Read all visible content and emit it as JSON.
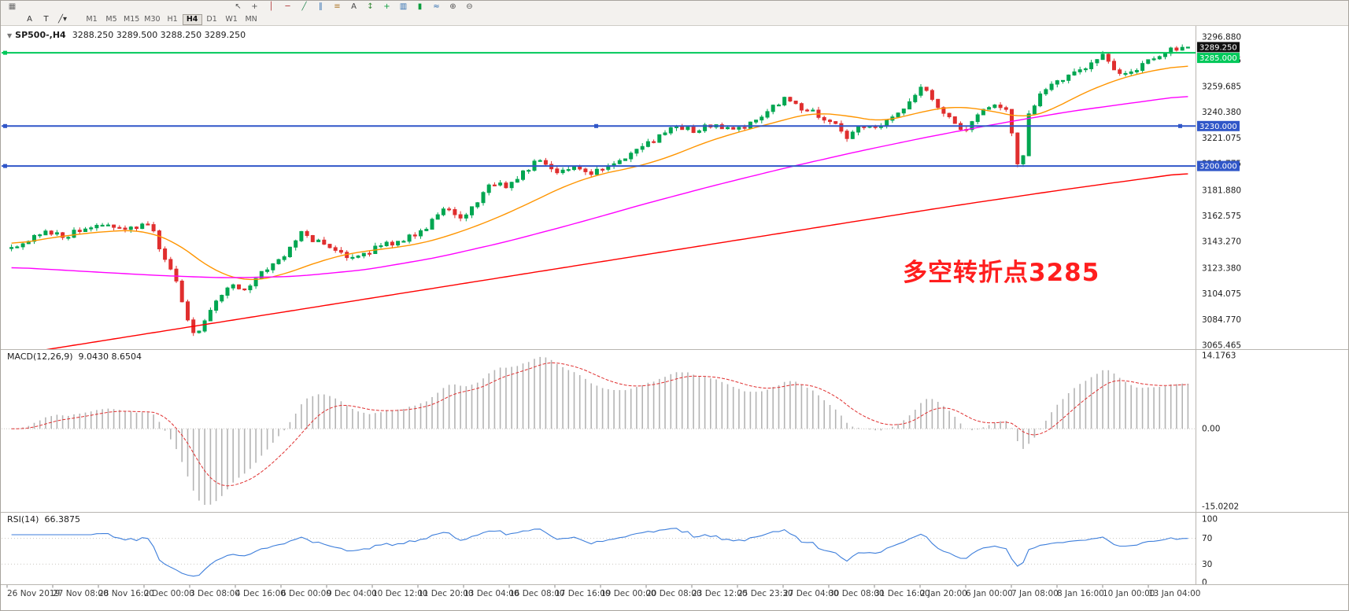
{
  "toolbar": {
    "row1_left_icons": [
      {
        "name": "menu-grid",
        "glyph": "▦",
        "color": "#6b6b6b"
      }
    ],
    "row1_right_icons": [
      {
        "name": "cursor",
        "glyph": "↖",
        "color": "#555555"
      },
      {
        "name": "crosshair",
        "glyph": "+",
        "color": "#555555"
      },
      {
        "name": "vertical-line",
        "glyph": "│",
        "color": "#b03030"
      },
      {
        "name": "horizontal-line",
        "glyph": "─",
        "color": "#b03030"
      },
      {
        "name": "trendline",
        "glyph": "╱",
        "color": "#2e8b57"
      },
      {
        "name": "equidistant-channel",
        "glyph": "∥",
        "color": "#2f6db0"
      },
      {
        "name": "fibonacci",
        "glyph": "≡",
        "color": "#b07a2e"
      },
      {
        "name": "text-label",
        "glyph": "A",
        "color": "#444444"
      },
      {
        "name": "arrow-marker",
        "glyph": "↕",
        "color": "#3a8a3a"
      },
      {
        "name": "new-order",
        "glyph": "+",
        "color": "#0b9e3e"
      },
      {
        "name": "bar-chart-mode",
        "glyph": "▥",
        "color": "#2f6db0"
      },
      {
        "name": "candlestick-mode",
        "glyph": "▮",
        "color": "#0b9e3e"
      },
      {
        "name": "line-chart-mode",
        "glyph": "≈",
        "color": "#2f6db0"
      },
      {
        "name": "zoom-in",
        "glyph": "⊕",
        "color": "#555555"
      },
      {
        "name": "zoom-out",
        "glyph": "⊖",
        "color": "#555555"
      }
    ],
    "row2_tools": [
      {
        "name": "cursor-mode",
        "glyph": "A"
      },
      {
        "name": "text-mode",
        "glyph": "T"
      },
      {
        "name": "draw-menu",
        "glyph": "╱▾"
      }
    ],
    "timeframes": [
      {
        "label": "M1",
        "active": false
      },
      {
        "label": "M5",
        "active": false
      },
      {
        "label": "M15",
        "active": false
      },
      {
        "label": "M30",
        "active": false
      },
      {
        "label": "H1",
        "active": false
      },
      {
        "label": "H4",
        "active": true
      },
      {
        "label": "D1",
        "active": false
      },
      {
        "label": "W1",
        "active": false
      },
      {
        "label": "MN",
        "active": false
      }
    ]
  },
  "chart": {
    "dropdown_glyph": "▼",
    "symbol_header": "SP500-,H4",
    "ohlc": "3288.250 3289.500 3288.250 3289.250"
  },
  "macd_panel": {
    "label": "MACD(12,26,9)",
    "values": "9.0430 8.6504"
  },
  "rsi_panel": {
    "label": "RSI(14)",
    "values": "66.3875"
  },
  "chart_data": {
    "type": "candlestick",
    "symbol": "SP500-",
    "timeframe": "H4",
    "ohlc_display": {
      "open": 3288.25,
      "high": 3289.5,
      "low": 3288.25,
      "close": 3289.25
    },
    "current_price": 3289.25,
    "current_price_badge": {
      "text": "3289.250",
      "bg": "#111111",
      "fg": "#ffffff"
    },
    "price_axis_range": [
      3065.465,
      3296.88
    ],
    "price_axis_ticks": [
      "3296.880",
      "3279.575",
      "3259.685",
      "3240.380",
      "3221.075",
      "3201.775",
      "3181.880",
      "3162.575",
      "3143.270",
      "3123.380",
      "3104.075",
      "3084.770",
      "3065.465"
    ],
    "hlines": [
      {
        "price": 3285.0,
        "label": "3285.000",
        "color": "#00c85a",
        "width": 2
      },
      {
        "price": 3230.0,
        "label": "3230.000",
        "color": "#3056c8",
        "width": 2
      },
      {
        "price": 3200.0,
        "label": "3200.000",
        "color": "#3056c8",
        "width": 2
      }
    ],
    "annotation": {
      "text": "多空转折点3285",
      "color": "#ff1e1e"
    },
    "candles": {
      "count": 208,
      "up_color": "#00a651",
      "down_color": "#e02f2f",
      "path": [
        [
          0.0,
          3138
        ],
        [
          0.01,
          3143
        ],
        [
          0.025,
          3150
        ],
        [
          0.045,
          3147
        ],
        [
          0.06,
          3152
        ],
        [
          0.075,
          3156
        ],
        [
          0.09,
          3151
        ],
        [
          0.105,
          3155
        ],
        [
          0.118,
          3158
        ],
        [
          0.128,
          3132
        ],
        [
          0.14,
          3116
        ],
        [
          0.148,
          3090
        ],
        [
          0.156,
          3071
        ],
        [
          0.165,
          3083
        ],
        [
          0.175,
          3100
        ],
        [
          0.19,
          3111
        ],
        [
          0.2,
          3107
        ],
        [
          0.212,
          3120
        ],
        [
          0.225,
          3129
        ],
        [
          0.238,
          3138
        ],
        [
          0.247,
          3151
        ],
        [
          0.258,
          3144
        ],
        [
          0.27,
          3140
        ],
        [
          0.283,
          3133
        ],
        [
          0.295,
          3131
        ],
        [
          0.31,
          3139
        ],
        [
          0.325,
          3142
        ],
        [
          0.34,
          3148
        ],
        [
          0.355,
          3156
        ],
        [
          0.37,
          3169
        ],
        [
          0.382,
          3161
        ],
        [
          0.395,
          3172
        ],
        [
          0.408,
          3189
        ],
        [
          0.42,
          3184
        ],
        [
          0.435,
          3196
        ],
        [
          0.45,
          3205
        ],
        [
          0.463,
          3197
        ],
        [
          0.478,
          3199
        ],
        [
          0.495,
          3195
        ],
        [
          0.512,
          3203
        ],
        [
          0.53,
          3211
        ],
        [
          0.548,
          3221
        ],
        [
          0.565,
          3230
        ],
        [
          0.58,
          3227
        ],
        [
          0.598,
          3231
        ],
        [
          0.615,
          3226
        ],
        [
          0.632,
          3235
        ],
        [
          0.648,
          3246
        ],
        [
          0.658,
          3250
        ],
        [
          0.668,
          3244
        ],
        [
          0.682,
          3240
        ],
        [
          0.697,
          3233
        ],
        [
          0.71,
          3221
        ],
        [
          0.722,
          3232
        ],
        [
          0.735,
          3229
        ],
        [
          0.75,
          3236
        ],
        [
          0.765,
          3251
        ],
        [
          0.776,
          3261
        ],
        [
          0.788,
          3243
        ],
        [
          0.8,
          3236
        ],
        [
          0.81,
          3226
        ],
        [
          0.822,
          3241
        ],
        [
          0.835,
          3247
        ],
        [
          0.848,
          3239
        ],
        [
          0.857,
          3190
        ],
        [
          0.864,
          3237
        ],
        [
          0.875,
          3256
        ],
        [
          0.89,
          3263
        ],
        [
          0.902,
          3269
        ],
        [
          0.915,
          3276
        ],
        [
          0.928,
          3282
        ],
        [
          0.94,
          3269
        ],
        [
          0.955,
          3273
        ],
        [
          0.97,
          3281
        ],
        [
          0.985,
          3287
        ],
        [
          1.0,
          3289.25
        ]
      ]
    },
    "ma_lines": [
      {
        "name": "ma-fast-line",
        "color": "#ff9500",
        "points": [
          [
            0,
            3141
          ],
          [
            0.04,
            3147
          ],
          [
            0.08,
            3151
          ],
          [
            0.11,
            3152
          ],
          [
            0.14,
            3143
          ],
          [
            0.17,
            3122
          ],
          [
            0.2,
            3113
          ],
          [
            0.23,
            3118
          ],
          [
            0.26,
            3128
          ],
          [
            0.29,
            3135
          ],
          [
            0.32,
            3138
          ],
          [
            0.35,
            3142
          ],
          [
            0.38,
            3150
          ],
          [
            0.41,
            3160
          ],
          [
            0.44,
            3172
          ],
          [
            0.47,
            3185
          ],
          [
            0.5,
            3194
          ],
          [
            0.53,
            3199
          ],
          [
            0.56,
            3207
          ],
          [
            0.59,
            3218
          ],
          [
            0.62,
            3226
          ],
          [
            0.65,
            3233
          ],
          [
            0.68,
            3240
          ],
          [
            0.71,
            3238
          ],
          [
            0.74,
            3233
          ],
          [
            0.77,
            3240
          ],
          [
            0.8,
            3245
          ],
          [
            0.83,
            3242
          ],
          [
            0.86,
            3236
          ],
          [
            0.88,
            3240
          ],
          [
            0.9,
            3250
          ],
          [
            0.93,
            3262
          ],
          [
            0.96,
            3270
          ],
          [
            1.0,
            3276
          ]
        ]
      },
      {
        "name": "ma-mid-line",
        "color": "#ff00ff",
        "points": [
          [
            0,
            3124
          ],
          [
            0.06,
            3121
          ],
          [
            0.12,
            3118
          ],
          [
            0.18,
            3116
          ],
          [
            0.24,
            3117
          ],
          [
            0.3,
            3122
          ],
          [
            0.36,
            3131
          ],
          [
            0.42,
            3143
          ],
          [
            0.48,
            3157
          ],
          [
            0.54,
            3172
          ],
          [
            0.6,
            3186
          ],
          [
            0.66,
            3199
          ],
          [
            0.72,
            3211
          ],
          [
            0.78,
            3222
          ],
          [
            0.84,
            3232
          ],
          [
            0.9,
            3241
          ],
          [
            0.95,
            3247
          ],
          [
            1.0,
            3253
          ]
        ]
      },
      {
        "name": "ma-slow-line",
        "color": "#ff0000",
        "points": [
          [
            0,
            3058
          ],
          [
            0.1,
            3072
          ],
          [
            0.2,
            3086
          ],
          [
            0.3,
            3100
          ],
          [
            0.4,
            3114
          ],
          [
            0.5,
            3128
          ],
          [
            0.6,
            3142
          ],
          [
            0.7,
            3156
          ],
          [
            0.8,
            3170
          ],
          [
            0.9,
            3183
          ],
          [
            1.0,
            3195
          ]
        ]
      }
    ],
    "macd": {
      "label": "MACD(12,26,9)",
      "main_value": 9.043,
      "signal_value": 8.6504,
      "axis_ticks": [
        "14.1763",
        "0.00",
        "-15.0202"
      ],
      "range": [
        -15.0202,
        14.1763
      ],
      "histogram_color": "#b4b4b4",
      "signal_color": "#e03030"
    },
    "rsi": {
      "label": "RSI(14)",
      "value": 66.3875,
      "axis_ticks": [
        "100",
        "70",
        "30",
        "0"
      ],
      "levels": [
        70,
        30
      ],
      "range": [
        0,
        100
      ],
      "line_color": "#3d7edb"
    },
    "time_axis": [
      "26 Nov 2019",
      "27 Nov 08:00",
      "28 Nov 16:00",
      "2 Dec 00:00",
      "3 Dec 08:00",
      "4 Dec 16:00",
      "6 Dec 00:00",
      "9 Dec 04:00",
      "10 Dec 12:00",
      "11 Dec 20:00",
      "13 Dec 04:00",
      "16 Dec 08:00",
      "17 Dec 16:00",
      "19 Dec 00:00",
      "20 Dec 08:00",
      "23 Dec 12:00",
      "25 Dec 23:30",
      "27 Dec 04:00",
      "30 Dec 08:00",
      "31 Dec 16:00",
      "2 Jan 20:00",
      "6 Jan 00:00",
      "7 Jan 08:00",
      "8 Jan 16:00",
      "10 Jan 00:00",
      "13 Jan 04:00"
    ]
  }
}
